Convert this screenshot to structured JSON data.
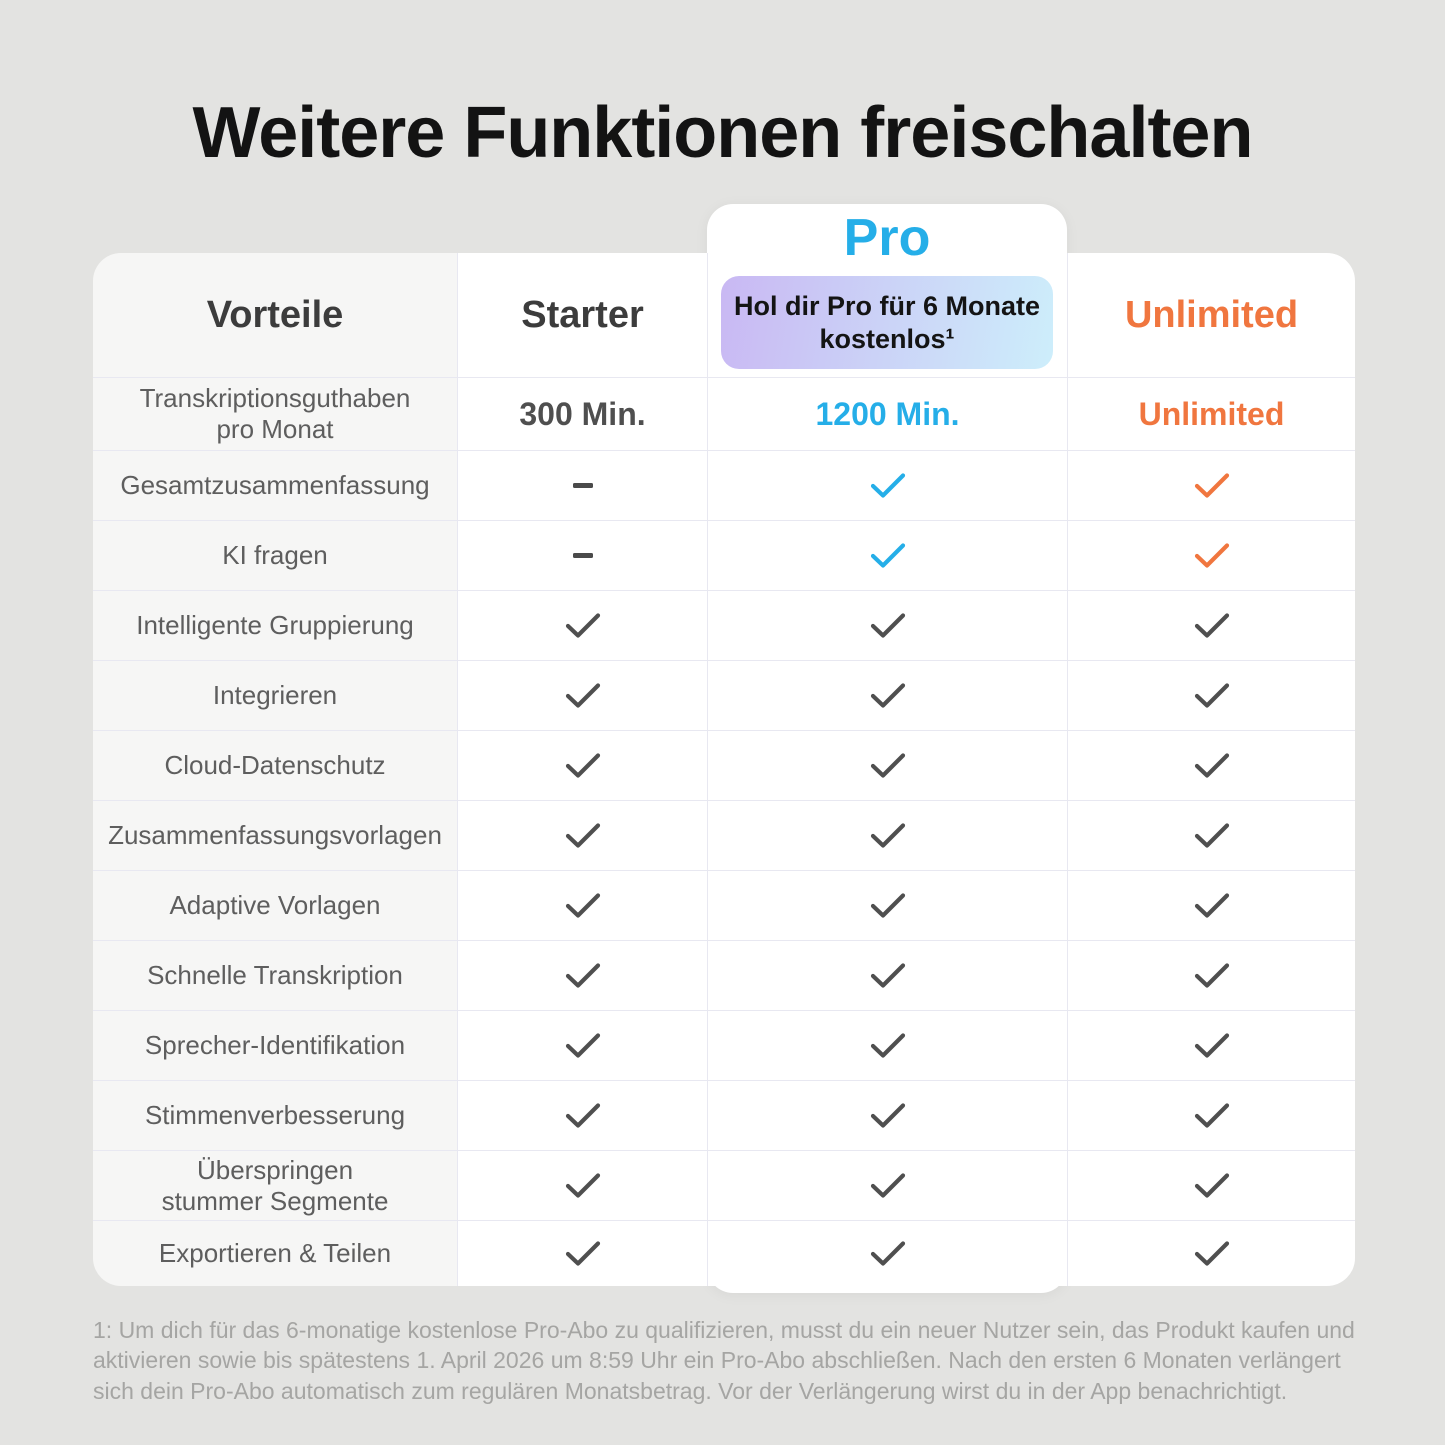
{
  "title": "Weitere Funktionen freischalten",
  "colors": {
    "blue": "#25AEE8",
    "orange": "#F0763F",
    "dark": "#4f4f4f",
    "check_gray": "#4f4f4f",
    "badge_gradient_start": "#C9B8F3",
    "badge_gradient_end": "#CDEEFB"
  },
  "pro_card": {
    "title": "Pro",
    "badge": "Hol dir Pro für 6 Monate\nkostenlos¹"
  },
  "table": {
    "headers": {
      "benefits": "Vorteile",
      "starter": "Starter",
      "unlimited": "Unlimited"
    },
    "rows": [
      {
        "label": "Transkriptionsguthaben\npro Monat",
        "starter": "300 Min.",
        "pro": "1200 Min.",
        "unlimited": "Unlimited"
      },
      {
        "label": "Gesamtzusammenfassung",
        "starter": "dash",
        "pro": "check:blue",
        "unlimited": "check:orange"
      },
      {
        "label": "KI fragen",
        "starter": "dash",
        "pro": "check:blue",
        "unlimited": "check:orange"
      },
      {
        "label": "Intelligente Gruppierung",
        "starter": "check",
        "pro": "check",
        "unlimited": "check"
      },
      {
        "label": "Integrieren",
        "starter": "check",
        "pro": "check",
        "unlimited": "check"
      },
      {
        "label": "Cloud-Datenschutz",
        "starter": "check",
        "pro": "check",
        "unlimited": "check"
      },
      {
        "label": "Zusammenfassungsvorlagen",
        "starter": "check",
        "pro": "check",
        "unlimited": "check"
      },
      {
        "label": "Adaptive Vorlagen",
        "starter": "check",
        "pro": "check",
        "unlimited": "check"
      },
      {
        "label": "Schnelle Transkription",
        "starter": "check",
        "pro": "check",
        "unlimited": "check"
      },
      {
        "label": "Sprecher-Identifikation",
        "starter": "check",
        "pro": "check",
        "unlimited": "check"
      },
      {
        "label": "Stimmenverbesserung",
        "starter": "check",
        "pro": "check",
        "unlimited": "check"
      },
      {
        "label": "Überspringen\nstummer Segmente",
        "starter": "check",
        "pro": "check",
        "unlimited": "check"
      },
      {
        "label": "Exportieren & Teilen",
        "starter": "check",
        "pro": "check",
        "unlimited": "check"
      }
    ]
  },
  "footnote": "1: Um dich für das 6-monatige kostenlose Pro-Abo zu qualifizieren, musst du ein neuer Nutzer sein, das Produkt kaufen und aktivieren sowie bis spätestens 1. April 2026 um 8:59 Uhr ein Pro-Abo abschließen. Nach den ersten 6 Monaten verlängert sich dein Pro-Abo automatisch zum regulären Monatsbetrag. Vor der Verlängerung wirst du in der App benachrichtigt."
}
